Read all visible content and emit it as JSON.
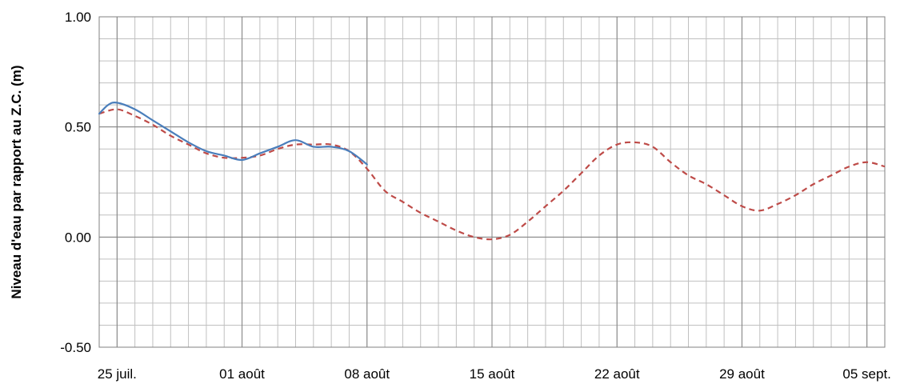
{
  "chart_data": {
    "type": "line",
    "title": "",
    "xlabel": "",
    "ylabel": "Niveau d'eau par rapport au Z.C. (m)",
    "ylim": [
      -0.5,
      1.0
    ],
    "xlim": [
      "2013-07-24",
      "2013-09-06"
    ],
    "yticks": [
      "-0.50",
      "0.00",
      "0.50",
      "1.00"
    ],
    "xticks": [
      {
        "date": "2013-07-25",
        "label": "25 juil."
      },
      {
        "date": "2013-08-01",
        "label": "01 août"
      },
      {
        "date": "2013-08-08",
        "label": "08 août"
      },
      {
        "date": "2013-08-15",
        "label": "15 août"
      },
      {
        "date": "2013-08-22",
        "label": "22 août"
      },
      {
        "date": "2013-08-29",
        "label": "29 août"
      },
      {
        "date": "2013-09-05",
        "label": "05 sept."
      }
    ],
    "grid": true,
    "series": [
      {
        "style": "solid",
        "color": "#4a7ebb",
        "points": [
          [
            "2013-07-24",
            0.56
          ],
          [
            "2013-07-24T12:00",
            0.6
          ],
          [
            "2013-07-25",
            0.61
          ],
          [
            "2013-07-26",
            0.58
          ],
          [
            "2013-07-27",
            0.53
          ],
          [
            "2013-07-28",
            0.48
          ],
          [
            "2013-07-29",
            0.43
          ],
          [
            "2013-07-30",
            0.39
          ],
          [
            "2013-07-31",
            0.37
          ],
          [
            "2013-08-01",
            0.35
          ],
          [
            "2013-08-02",
            0.38
          ],
          [
            "2013-08-03",
            0.41
          ],
          [
            "2013-08-04",
            0.44
          ],
          [
            "2013-08-05",
            0.41
          ],
          [
            "2013-08-06",
            0.41
          ],
          [
            "2013-08-07",
            0.39
          ],
          [
            "2013-08-08",
            0.33
          ]
        ]
      },
      {
        "style": "dashed",
        "color": "#be4b48",
        "points": [
          [
            "2013-07-24",
            0.56
          ],
          [
            "2013-07-25",
            0.58
          ],
          [
            "2013-07-26",
            0.55
          ],
          [
            "2013-07-27",
            0.51
          ],
          [
            "2013-07-28",
            0.46
          ],
          [
            "2013-07-29",
            0.42
          ],
          [
            "2013-07-30",
            0.38
          ],
          [
            "2013-07-31",
            0.36
          ],
          [
            "2013-08-01",
            0.36
          ],
          [
            "2013-08-02",
            0.37
          ],
          [
            "2013-08-03",
            0.4
          ],
          [
            "2013-08-04",
            0.42
          ],
          [
            "2013-08-05",
            0.42
          ],
          [
            "2013-08-06",
            0.42
          ],
          [
            "2013-08-07",
            0.39
          ],
          [
            "2013-08-08",
            0.31
          ],
          [
            "2013-08-09",
            0.21
          ],
          [
            "2013-08-10",
            0.16
          ],
          [
            "2013-08-11",
            0.11
          ],
          [
            "2013-08-12",
            0.07
          ],
          [
            "2013-08-13",
            0.03
          ],
          [
            "2013-08-14",
            0.0
          ],
          [
            "2013-08-15",
            -0.01
          ],
          [
            "2013-08-16",
            0.01
          ],
          [
            "2013-08-17",
            0.07
          ],
          [
            "2013-08-18",
            0.14
          ],
          [
            "2013-08-19",
            0.21
          ],
          [
            "2013-08-20",
            0.29
          ],
          [
            "2013-08-21",
            0.37
          ],
          [
            "2013-08-22",
            0.42
          ],
          [
            "2013-08-23",
            0.43
          ],
          [
            "2013-08-24",
            0.41
          ],
          [
            "2013-08-25",
            0.34
          ],
          [
            "2013-08-26",
            0.28
          ],
          [
            "2013-08-27",
            0.24
          ],
          [
            "2013-08-28",
            0.19
          ],
          [
            "2013-08-29",
            0.14
          ],
          [
            "2013-08-30",
            0.12
          ],
          [
            "2013-08-31",
            0.15
          ],
          [
            "2013-09-01",
            0.19
          ],
          [
            "2013-09-02",
            0.24
          ],
          [
            "2013-09-03",
            0.28
          ],
          [
            "2013-09-04",
            0.32
          ],
          [
            "2013-09-05",
            0.34
          ],
          [
            "2013-09-06",
            0.32
          ]
        ]
      }
    ]
  }
}
